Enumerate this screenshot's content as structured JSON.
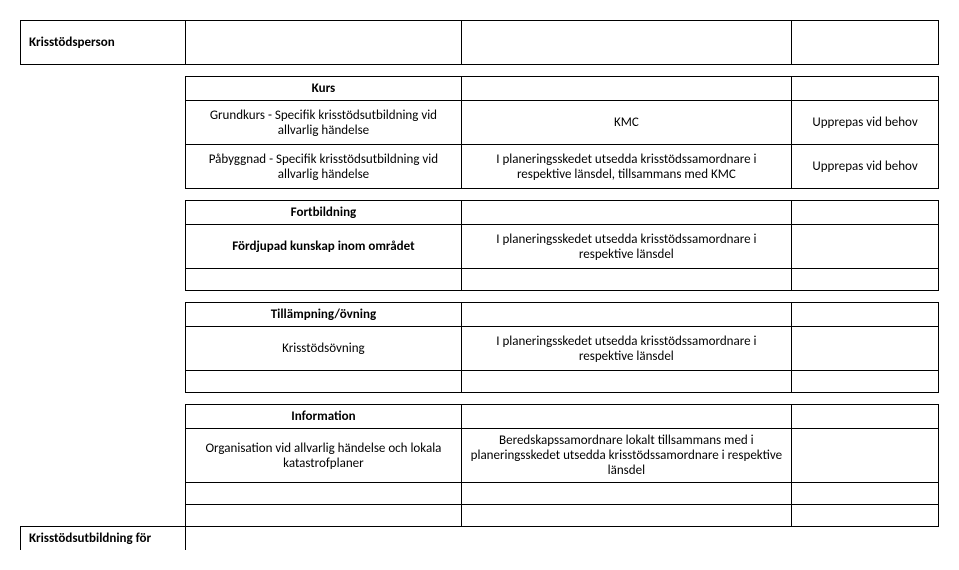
{
  "header": {
    "title": "Krisstödsperson"
  },
  "kurs": {
    "heading": "Kurs",
    "row1": {
      "col2": "Grundkurs - Specifik krisstödsutbildning vid allvarlig händelse",
      "col3": "KMC",
      "col4": "Upprepas vid behov"
    },
    "row2": {
      "col2": "Påbyggnad - Specifik krisstödsutbildning vid allvarlig händelse",
      "col3": "I planeringsskedet utsedda krisstödssamordnare i respektive länsdel, tillsammans med KMC",
      "col4": "Upprepas vid behov"
    }
  },
  "fortbildning": {
    "heading": "Fortbildning",
    "row1": {
      "col2": "Fördjupad kunskap inom området",
      "col3": "I planeringsskedet utsedda krisstödssamordnare i respektive länsdel"
    }
  },
  "tillampning": {
    "heading": "Tillämpning/övning",
    "row1": {
      "col2": "Krisstödsövning",
      "col3": "I planeringsskedet utsedda krisstödssamordnare i respektive länsdel"
    }
  },
  "information": {
    "heading": "Information",
    "row1": {
      "col2": "Organisation vid allvarlig händelse och lokala katastrofplaner",
      "col3": "Beredskapssamordnare lokalt tillsammans med i planeringsskedet utsedda krisstödssamordnare i respektive länsdel"
    }
  },
  "footer": {
    "title": "Krisstödsutbildning för"
  }
}
